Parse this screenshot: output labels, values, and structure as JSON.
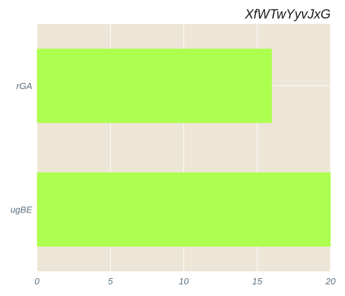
{
  "chart_data": {
    "type": "bar",
    "orientation": "horizontal",
    "title": "XfWTwYyvJxG",
    "xlabel": "",
    "ylabel": "",
    "categories": [
      "rGA",
      "ugBE"
    ],
    "values": [
      16,
      20
    ],
    "xlim": [
      0,
      20
    ],
    "xticks": [
      "0",
      "5",
      "10",
      "15",
      "20"
    ],
    "grid": true,
    "legend": "none",
    "colors": {
      "bar": "#adff4f",
      "plot_background": "#ede5d5",
      "grid": "#ffffff",
      "tick_text": "#5a6f7f"
    }
  }
}
